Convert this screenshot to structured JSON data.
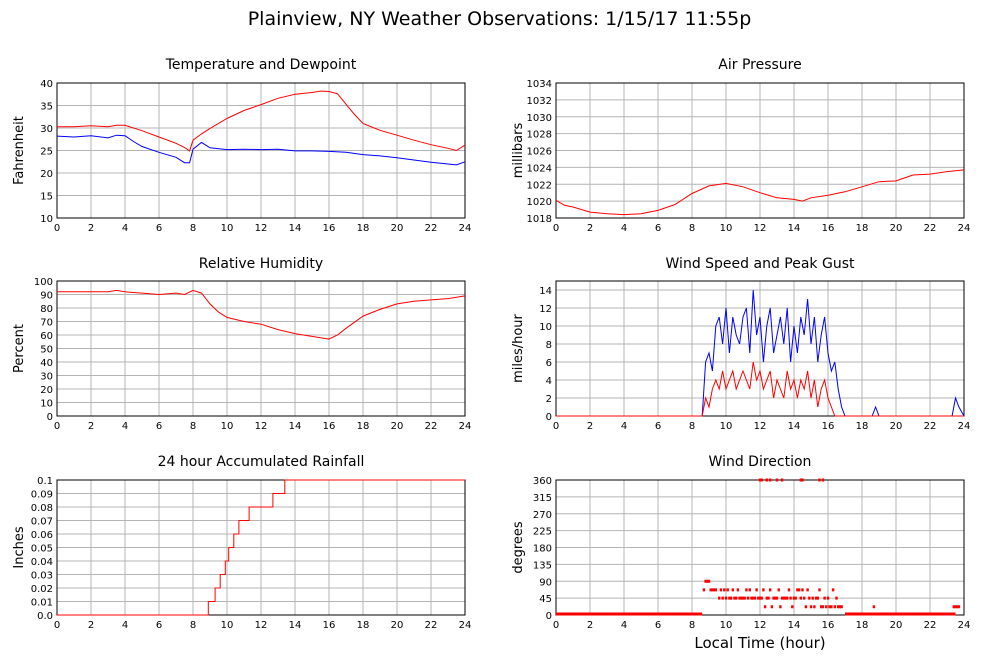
{
  "title": "Plainview, NY Weather Observations: 1/15/17 11:55p",
  "bottom_xlabel": "Local Time (hour)",
  "colors": {
    "red": "#ff0000",
    "blue": "#0000ff",
    "grid": "#b4b4b4"
  },
  "chart_data": [
    {
      "id": "temp",
      "type": "line",
      "title": "Temperature and Dewpoint",
      "ylabel": "Fahrenheit",
      "xlim": [
        0,
        24
      ],
      "ylim": [
        10,
        40
      ],
      "xticks": [
        0,
        2,
        4,
        6,
        8,
        10,
        12,
        14,
        16,
        18,
        20,
        22,
        24
      ],
      "yticks": [
        10,
        15,
        20,
        25,
        30,
        35,
        40
      ],
      "series": [
        {
          "color": "#ff0000",
          "x": [
            0,
            1,
            2,
            3,
            3.5,
            4,
            5,
            6,
            7,
            7.5,
            7.8,
            8,
            8.5,
            9,
            10,
            11,
            12,
            13,
            14,
            15,
            15.5,
            16,
            16.5,
            17,
            17.5,
            18,
            19,
            20,
            21,
            22,
            23,
            23.5,
            24
          ],
          "y": [
            30.3,
            30.3,
            30.5,
            30.3,
            30.6,
            30.6,
            29.4,
            28.0,
            26.6,
            25.7,
            24.9,
            27.3,
            28.7,
            29.9,
            32.1,
            33.9,
            35.2,
            36.6,
            37.5,
            37.9,
            38.2,
            38.1,
            37.6,
            35.3,
            33.0,
            31.0,
            29.5,
            28.4,
            27.3,
            26.3,
            25.5,
            25.0,
            26.2
          ]
        },
        {
          "color": "#0000ff",
          "x": [
            0,
            1,
            2,
            3,
            3.5,
            4,
            4.5,
            5,
            6,
            7,
            7.5,
            7.8,
            8,
            8.5,
            9,
            10,
            11,
            12,
            13,
            14,
            15,
            16,
            17,
            18,
            19,
            20,
            21,
            22,
            23,
            23.5,
            24
          ],
          "y": [
            28.2,
            28.0,
            28.3,
            27.8,
            28.4,
            28.3,
            27.0,
            25.9,
            24.6,
            23.5,
            22.3,
            22.3,
            25.3,
            26.8,
            25.6,
            25.2,
            25.3,
            25.2,
            25.3,
            24.9,
            24.9,
            24.8,
            24.6,
            24.1,
            23.8,
            23.4,
            22.9,
            22.4,
            22.0,
            21.8,
            22.5
          ]
        }
      ]
    },
    {
      "id": "pressure",
      "type": "line",
      "title": "Air Pressure",
      "ylabel": "millibars",
      "xlim": [
        0,
        24
      ],
      "ylim": [
        1018,
        1034
      ],
      "xticks": [
        0,
        2,
        4,
        6,
        8,
        10,
        12,
        14,
        16,
        18,
        20,
        22,
        24
      ],
      "yticks": [
        1018,
        1020,
        1022,
        1024,
        1026,
        1028,
        1030,
        1032,
        1034
      ],
      "series": [
        {
          "color": "#ff0000",
          "x": [
            0,
            0.5,
            1,
            2,
            3,
            4,
            5,
            6,
            7,
            8,
            9,
            10,
            11,
            12,
            13,
            14,
            14.5,
            15,
            16,
            17,
            18,
            19,
            20,
            21,
            22,
            23,
            24
          ],
          "y": [
            1020.1,
            1019.5,
            1019.3,
            1018.7,
            1018.5,
            1018.4,
            1018.5,
            1018.9,
            1019.6,
            1020.9,
            1021.8,
            1022.1,
            1021.7,
            1021.0,
            1020.4,
            1020.2,
            1020.0,
            1020.4,
            1020.7,
            1021.1,
            1021.7,
            1022.3,
            1022.4,
            1023.1,
            1023.2,
            1023.5,
            1023.7
          ]
        }
      ]
    },
    {
      "id": "humidity",
      "type": "line",
      "title": "Relative Humidity",
      "ylabel": "Percent",
      "xlim": [
        0,
        24
      ],
      "ylim": [
        0,
        100
      ],
      "xticks": [
        0,
        2,
        4,
        6,
        8,
        10,
        12,
        14,
        16,
        18,
        20,
        22,
        24
      ],
      "yticks": [
        0,
        10,
        20,
        30,
        40,
        50,
        60,
        70,
        80,
        90,
        100
      ],
      "series": [
        {
          "color": "#ff0000",
          "x": [
            0,
            1,
            2,
            3,
            3.5,
            4,
            5,
            6,
            7,
            7.5,
            8,
            8.5,
            9,
            9.5,
            10,
            11,
            12,
            13,
            14,
            15,
            15.5,
            16,
            16.5,
            17,
            18,
            19,
            20,
            21,
            22,
            23,
            24
          ],
          "y": [
            92,
            92,
            92,
            92,
            93,
            92,
            91,
            90,
            91,
            90,
            93,
            91,
            83,
            77,
            73,
            70,
            68,
            64,
            61,
            59,
            58,
            57,
            60,
            65,
            74,
            79,
            83,
            85,
            86,
            87,
            89
          ]
        }
      ]
    },
    {
      "id": "wind",
      "type": "line",
      "title": "Wind Speed and Peak Gust",
      "ylabel": "miles/hour",
      "xlim": [
        0,
        24
      ],
      "ylim": [
        0,
        15
      ],
      "xticks": [
        0,
        2,
        4,
        6,
        8,
        10,
        12,
        14,
        16,
        18,
        20,
        22,
        24
      ],
      "yticks": [
        0,
        2,
        4,
        6,
        8,
        10,
        12,
        14
      ],
      "series": [
        {
          "color": "#0000ff",
          "x": [
            0,
            8.6,
            8.8,
            9.0,
            9.2,
            9.4,
            9.6,
            9.8,
            10.0,
            10.2,
            10.4,
            10.6,
            10.8,
            11.0,
            11.2,
            11.4,
            11.6,
            11.8,
            12.0,
            12.2,
            12.4,
            12.6,
            12.8,
            13.0,
            13.2,
            13.4,
            13.6,
            13.8,
            14.0,
            14.2,
            14.4,
            14.6,
            14.8,
            15.0,
            15.2,
            15.4,
            15.6,
            15.8,
            16.0,
            16.2,
            16.4,
            16.6,
            16.8,
            17.0,
            18.6,
            18.8,
            19.0,
            23.3,
            23.5,
            23.7,
            24
          ],
          "y": [
            0,
            0,
            6,
            7,
            5,
            10,
            11,
            8,
            12,
            7,
            11,
            9,
            8,
            11,
            12,
            7,
            14,
            9,
            11,
            6,
            10,
            12,
            7,
            9,
            11,
            8,
            12,
            6,
            10,
            7,
            11,
            9,
            13,
            8,
            11,
            6,
            9,
            11,
            7,
            5,
            6,
            3,
            1,
            0,
            0,
            1,
            0,
            0,
            2,
            1,
            0
          ]
        },
        {
          "color": "#ff0000",
          "x": [
            0,
            8.6,
            8.8,
            9.0,
            9.2,
            9.4,
            9.6,
            9.8,
            10.0,
            10.2,
            10.4,
            10.6,
            10.8,
            11.0,
            11.2,
            11.4,
            11.6,
            11.8,
            12.0,
            12.2,
            12.4,
            12.6,
            12.8,
            13.0,
            13.2,
            13.4,
            13.6,
            13.8,
            14.0,
            14.2,
            14.4,
            14.6,
            14.8,
            15.0,
            15.2,
            15.4,
            15.6,
            15.8,
            16.0,
            16.2,
            16.4,
            16.6,
            16.8,
            17.0,
            18.6,
            18.8,
            19.0,
            23.3,
            23.5,
            23.7,
            24
          ],
          "y": [
            0,
            0,
            2,
            1,
            3,
            4,
            3,
            5,
            3,
            4,
            5,
            3,
            4,
            5,
            4,
            3,
            6,
            4,
            5,
            3,
            4,
            5,
            2,
            4,
            3,
            2,
            5,
            3,
            4,
            2,
            4,
            3,
            5,
            2,
            4,
            1,
            3,
            4,
            2,
            1,
            0,
            0,
            0,
            0,
            0,
            0,
            0,
            0,
            0,
            0,
            0
          ]
        }
      ]
    },
    {
      "id": "rain",
      "type": "line",
      "title": "24 hour Accumulated Rainfall",
      "ylabel": "Inches",
      "xlim": [
        0,
        24
      ],
      "ylim": [
        0,
        0.1
      ],
      "xticks": [
        0,
        2,
        4,
        6,
        8,
        10,
        12,
        14,
        16,
        18,
        20,
        22,
        24
      ],
      "yticks": [
        0,
        0.01,
        0.02,
        0.03,
        0.04,
        0.05,
        0.06,
        0.07,
        0.08,
        0.09,
        0.1
      ],
      "ytick_labels": [
        "0.0",
        "0.01",
        "0.02",
        "0.03",
        "0.04",
        "0.05",
        "0.06",
        "0.07",
        "0.08",
        "0.09",
        "0.1"
      ],
      "series": [
        {
          "color": "#ff0000",
          "step": true,
          "x": [
            0,
            8.9,
            9.3,
            9.6,
            9.9,
            10.1,
            10.4,
            10.7,
            10.9,
            11.3,
            11.9,
            12.7,
            13.0,
            13.4,
            13.8,
            24
          ],
          "y": [
            0,
            0.01,
            0.02,
            0.03,
            0.04,
            0.05,
            0.06,
            0.07,
            0.07,
            0.08,
            0.08,
            0.09,
            0.09,
            0.1,
            0.1,
            0.1
          ]
        }
      ]
    },
    {
      "id": "winddir",
      "type": "scatter",
      "title": "Wind Direction",
      "ylabel": "degrees",
      "xlim": [
        0,
        24
      ],
      "ylim": [
        0,
        360
      ],
      "xticks": [
        0,
        2,
        4,
        6,
        8,
        10,
        12,
        14,
        16,
        18,
        20,
        22,
        24
      ],
      "yticks": [
        0,
        45,
        90,
        135,
        180,
        225,
        270,
        315,
        360
      ],
      "baseline": {
        "from": 0,
        "to": 8.6,
        "value": 0
      },
      "baseline2": {
        "from": 17.0,
        "to": 23.5,
        "value": 0
      },
      "series": [
        {
          "color": "#ff0000",
          "x": [
            8.7,
            8.8,
            8.9,
            9.0,
            9.1,
            9.2,
            9.3,
            9.4,
            9.6,
            9.7,
            9.8,
            9.9,
            10.0,
            10.1,
            10.2,
            10.3,
            10.4,
            10.5,
            10.6,
            10.7,
            10.8,
            10.9,
            11.0,
            11.1,
            11.2,
            11.3,
            11.4,
            11.5,
            11.6,
            11.7,
            11.8,
            11.9,
            12.0,
            12.1,
            12.2,
            12.3,
            12.4,
            12.5,
            12.6,
            12.7,
            12.8,
            12.9,
            13.0,
            13.1,
            13.2,
            13.3,
            13.4,
            13.5,
            13.6,
            13.7,
            13.8,
            13.9,
            14.0,
            14.1,
            14.2,
            14.3,
            14.4,
            14.5,
            14.6,
            14.7,
            14.8,
            14.9,
            15.0,
            15.1,
            15.2,
            15.3,
            15.4,
            15.5,
            15.6,
            15.7,
            15.8,
            15.9,
            16.0,
            16.1,
            16.2,
            16.3,
            16.4,
            16.5,
            16.6,
            16.7,
            16.8,
            18.7,
            23.4,
            23.5,
            23.6,
            23.7,
            12.0,
            12.1,
            12.4,
            12.6,
            13.0,
            13.3,
            14.4,
            14.5,
            15.5,
            15.7
          ],
          "y": [
            67,
            90,
            90,
            90,
            67,
            67,
            67,
            67,
            45,
            67,
            45,
            67,
            45,
            67,
            45,
            45,
            67,
            45,
            45,
            67,
            45,
            45,
            45,
            45,
            67,
            45,
            67,
            45,
            45,
            45,
            67,
            45,
            45,
            45,
            67,
            22,
            45,
            45,
            67,
            22,
            45,
            45,
            45,
            67,
            22,
            45,
            45,
            45,
            45,
            67,
            45,
            22,
            45,
            45,
            67,
            67,
            45,
            67,
            45,
            22,
            67,
            45,
            22,
            45,
            22,
            45,
            45,
            67,
            22,
            22,
            45,
            22,
            45,
            22,
            22,
            67,
            22,
            45,
            22,
            22,
            22,
            22,
            22,
            22,
            22,
            22,
            360,
            360,
            360,
            360,
            360,
            360,
            360,
            360,
            360,
            360
          ]
        }
      ]
    }
  ]
}
